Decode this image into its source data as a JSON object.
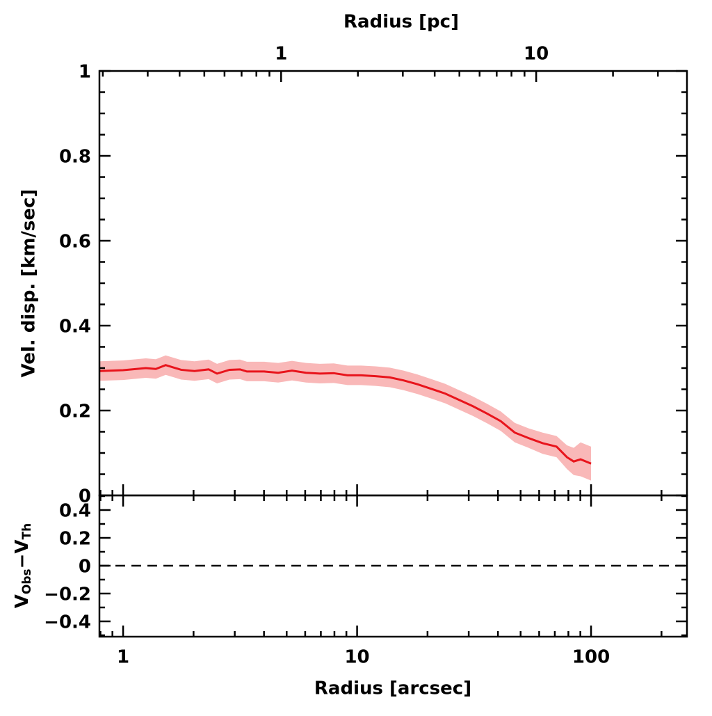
{
  "chart_data": [
    {
      "type": "line",
      "ylabel": "Vel. disp. [km/sec]",
      "x2label": "Radius [pc]",
      "xscale": "log",
      "xlim": [
        0.792,
        257
      ],
      "x2lim": [
        0.194,
        39
      ],
      "x2ticks": [
        1,
        10
      ],
      "ylim": [
        0,
        1
      ],
      "yticks": [
        0,
        0.2,
        0.4,
        0.6,
        0.8,
        1
      ],
      "series": [
        {
          "color": "#e8141c",
          "band_color": "#f9b8b8",
          "x": [
            0.792,
            1.0,
            1.25,
            1.38,
            1.52,
            1.77,
            2.02,
            2.32,
            2.52,
            2.85,
            3.16,
            3.38,
            4.01,
            4.6,
            5.27,
            6.05,
            6.93,
            7.95,
            9.1,
            10.4,
            12.0,
            13.8,
            15.8,
            18.1,
            20.8,
            23.8,
            27.3,
            31.3,
            35.9,
            41.1,
            47.2,
            54.1,
            62.1,
            71.2,
            78.9,
            84.3,
            90.2,
            100
          ],
          "values": [
            0.293,
            0.295,
            0.3,
            0.298,
            0.307,
            0.296,
            0.293,
            0.297,
            0.287,
            0.296,
            0.297,
            0.292,
            0.292,
            0.289,
            0.294,
            0.289,
            0.287,
            0.288,
            0.283,
            0.283,
            0.281,
            0.278,
            0.271,
            0.262,
            0.251,
            0.24,
            0.225,
            0.21,
            0.193,
            0.175,
            0.148,
            0.135,
            0.123,
            0.115,
            0.09,
            0.08,
            0.085,
            0.075
          ],
          "upper": [
            0.316,
            0.318,
            0.323,
            0.321,
            0.33,
            0.319,
            0.316,
            0.32,
            0.31,
            0.319,
            0.32,
            0.315,
            0.315,
            0.312,
            0.317,
            0.312,
            0.31,
            0.311,
            0.306,
            0.306,
            0.304,
            0.301,
            0.294,
            0.285,
            0.274,
            0.263,
            0.248,
            0.233,
            0.216,
            0.198,
            0.171,
            0.158,
            0.148,
            0.14,
            0.118,
            0.112,
            0.125,
            0.115
          ],
          "lower": [
            0.27,
            0.272,
            0.277,
            0.275,
            0.284,
            0.273,
            0.27,
            0.274,
            0.264,
            0.273,
            0.274,
            0.269,
            0.269,
            0.266,
            0.271,
            0.266,
            0.264,
            0.265,
            0.26,
            0.26,
            0.258,
            0.255,
            0.248,
            0.239,
            0.228,
            0.217,
            0.202,
            0.187,
            0.17,
            0.152,
            0.125,
            0.112,
            0.098,
            0.09,
            0.062,
            0.048,
            0.045,
            0.035
          ]
        }
      ]
    },
    {
      "type": "residual",
      "xlabel": "Radius [arcsec]",
      "ylabel_parts": [
        "V",
        "Obs",
        "−V",
        "Th"
      ],
      "xscale": "log",
      "xlim": [
        0.792,
        257
      ],
      "xticks": [
        1,
        10,
        100
      ],
      "ylim": [
        -0.51,
        0.505
      ],
      "yticks": [
        {
          "value": -0.4,
          "label": "−0.4"
        },
        {
          "value": -0.2,
          "label": "−0.2"
        },
        0,
        0.2,
        0.4
      ],
      "reference_line": 0
    }
  ]
}
